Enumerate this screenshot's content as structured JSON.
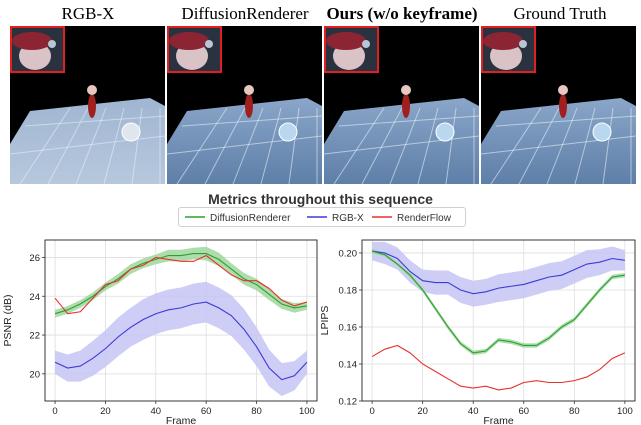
{
  "columns": [
    {
      "title": "RGB-X",
      "bold": false
    },
    {
      "title": "DiffusionRenderer",
      "bold": false
    },
    {
      "title": "Ours (w/o keyframe)",
      "bold": true
    },
    {
      "title": "Ground Truth",
      "bold": false
    }
  ],
  "section_title": "Metrics throughout this sequence",
  "colors": {
    "DiffusionRenderer": "#2ca02c",
    "RGB-X": "#3b3bd6",
    "RenderFlow": "#e8302a",
    "DiffusionRenderer_band": "#9fd79f",
    "RGB-X_band": "#c4c4f5",
    "inset_border": "#e02020"
  },
  "chart_data": [
    {
      "type": "line",
      "title": "",
      "xlabel": "Frame",
      "ylabel": "PSNR (dB)",
      "xlim": [
        -4,
        104
      ],
      "ylim": [
        18.6,
        26.9
      ],
      "xticks": [
        0,
        20,
        40,
        60,
        80,
        100
      ],
      "yticks": [
        20,
        22,
        24,
        26
      ],
      "grid": true,
      "legend": "top-center",
      "x": [
        0,
        5,
        10,
        15,
        20,
        25,
        30,
        35,
        40,
        45,
        50,
        55,
        60,
        65,
        70,
        75,
        80,
        85,
        90,
        95,
        100
      ],
      "series": [
        {
          "name": "DiffusionRenderer",
          "values": [
            23.1,
            23.3,
            23.6,
            24.0,
            24.5,
            24.9,
            25.4,
            25.7,
            25.9,
            26.1,
            26.1,
            26.2,
            26.2,
            25.9,
            25.4,
            24.9,
            24.6,
            24.1,
            23.6,
            23.4,
            23.5
          ],
          "band": [
            0.2,
            0.2,
            0.2,
            0.2,
            0.2,
            0.25,
            0.25,
            0.25,
            0.25,
            0.3,
            0.3,
            0.3,
            0.35,
            0.35,
            0.3,
            0.3,
            0.3,
            0.3,
            0.25,
            0.25,
            0.2
          ]
        },
        {
          "name": "RGB-X",
          "values": [
            20.6,
            20.3,
            20.4,
            20.8,
            21.3,
            21.9,
            22.4,
            22.8,
            23.1,
            23.3,
            23.4,
            23.6,
            23.7,
            23.4,
            23.0,
            22.3,
            21.4,
            20.3,
            19.7,
            19.9,
            20.6
          ],
          "band": [
            0.6,
            0.7,
            0.8,
            0.9,
            0.95,
            1.0,
            1.0,
            1.05,
            1.05,
            1.05,
            1.05,
            1.05,
            1.05,
            1.05,
            1.05,
            1.05,
            1.0,
            0.95,
            0.85,
            0.75,
            0.6
          ]
        },
        {
          "name": "RenderFlow",
          "values": [
            23.9,
            23.1,
            23.2,
            23.9,
            24.6,
            24.8,
            25.4,
            25.6,
            26.0,
            25.9,
            25.8,
            25.8,
            26.1,
            25.6,
            25.1,
            24.8,
            24.8,
            24.4,
            23.8,
            23.5,
            23.7
          ],
          "band": null
        }
      ]
    },
    {
      "type": "line",
      "title": "",
      "xlabel": "Frame",
      "ylabel": "LPIPS",
      "xlim": [
        -4,
        104
      ],
      "ylim": [
        0.12,
        0.207
      ],
      "xticks": [
        0,
        20,
        40,
        60,
        80,
        100
      ],
      "yticks": [
        0.12,
        0.14,
        0.16,
        0.18,
        0.2
      ],
      "grid": true,
      "legend": "top-center",
      "x": [
        0,
        5,
        10,
        15,
        20,
        25,
        30,
        35,
        40,
        45,
        50,
        55,
        60,
        65,
        70,
        75,
        80,
        85,
        90,
        95,
        100
      ],
      "series": [
        {
          "name": "DiffusionRenderer",
          "values": [
            0.201,
            0.199,
            0.194,
            0.188,
            0.18,
            0.17,
            0.16,
            0.151,
            0.146,
            0.147,
            0.153,
            0.152,
            0.15,
            0.15,
            0.154,
            0.16,
            0.164,
            0.172,
            0.18,
            0.187,
            0.188
          ],
          "band": [
            0.001,
            0.001,
            0.001,
            0.0012,
            0.0012,
            0.0012,
            0.0012,
            0.0012,
            0.0012,
            0.0012,
            0.0012,
            0.0012,
            0.0012,
            0.0012,
            0.0012,
            0.0012,
            0.0012,
            0.0012,
            0.0012,
            0.0012,
            0.0012
          ]
        },
        {
          "name": "RGB-X",
          "values": [
            0.201,
            0.2,
            0.197,
            0.19,
            0.185,
            0.184,
            0.184,
            0.18,
            0.178,
            0.179,
            0.181,
            0.182,
            0.183,
            0.185,
            0.187,
            0.188,
            0.191,
            0.194,
            0.195,
            0.197,
            0.196
          ],
          "band": [
            0.005,
            0.006,
            0.006,
            0.006,
            0.006,
            0.0065,
            0.0065,
            0.007,
            0.007,
            0.007,
            0.0075,
            0.0075,
            0.0075,
            0.0075,
            0.0075,
            0.0075,
            0.0075,
            0.0075,
            0.007,
            0.0065,
            0.0055
          ]
        },
        {
          "name": "RenderFlow",
          "values": [
            0.144,
            0.148,
            0.15,
            0.146,
            0.14,
            0.136,
            0.132,
            0.128,
            0.127,
            0.128,
            0.126,
            0.127,
            0.13,
            0.131,
            0.13,
            0.13,
            0.131,
            0.133,
            0.137,
            0.143,
            0.146
          ],
          "band": null
        }
      ]
    }
  ]
}
